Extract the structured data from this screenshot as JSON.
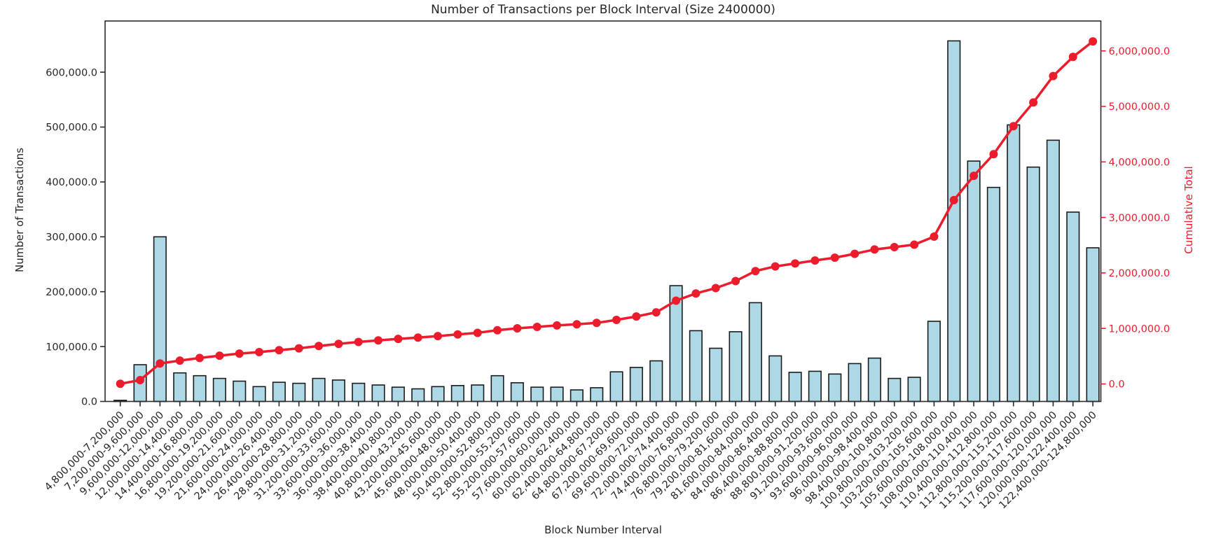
{
  "figure": {
    "title": "Number of Transactions per Block Interval (Size 2400000)",
    "xlabel": "Block Number Interval",
    "ylabel_left": "Number of Transactions",
    "ylabel_right": "Cumulative Total"
  },
  "colors": {
    "background": "#ffffff",
    "bar_fill": "#add8e6",
    "bar_edge": "#1c1c1c",
    "line": "#ed1c2d",
    "marker": "#ed1c2d",
    "spine": "#2b2b2b",
    "text": "#262626",
    "right_axis_text": "#ed1c2d"
  },
  "chart_data": {
    "type": "bar",
    "title": "Number of Transactions per Block Interval (Size 2400000)",
    "xlabel": "Block Number Interval",
    "ylabel": "Number of Transactions",
    "ylabel_right": "Cumulative Total",
    "interval_size": 2400000,
    "grid": false,
    "legend_position": "none",
    "categories": [
      "4,800,000-7,200,000",
      "7,200,000-9,600,000",
      "9,600,000-12,000,000",
      "12,000,000-14,400,000",
      "14,400,000-16,800,000",
      "16,800,000-19,200,000",
      "19,200,000-21,600,000",
      "21,600,000-24,000,000",
      "24,000,000-26,400,000",
      "26,400,000-28,800,000",
      "28,800,000-31,200,000",
      "31,200,000-33,600,000",
      "33,600,000-36,000,000",
      "36,000,000-38,400,000",
      "38,400,000-40,800,000",
      "40,800,000-43,200,000",
      "43,200,000-45,600,000",
      "45,600,000-48,000,000",
      "48,000,000-50,400,000",
      "50,400,000-52,800,000",
      "52,800,000-55,200,000",
      "55,200,000-57,600,000",
      "57,600,000-60,000,000",
      "60,000,000-62,400,000",
      "62,400,000-64,800,000",
      "64,800,000-67,200,000",
      "67,200,000-69,600,000",
      "69,600,000-72,000,000",
      "72,000,000-74,400,000",
      "74,400,000-76,800,000",
      "76,800,000-79,200,000",
      "79,200,000-81,600,000",
      "81,600,000-84,000,000",
      "84,000,000-86,400,000",
      "86,400,000-88,800,000",
      "88,800,000-91,200,000",
      "91,200,000-93,600,000",
      "93,600,000-96,000,000",
      "96,000,000-98,400,000",
      "98,400,000-100,800,000",
      "100,800,000-103,200,000",
      "103,200,000-105,600,000",
      "105,600,000-108,000,000",
      "108,000,000-110,400,000",
      "110,400,000-112,800,000",
      "112,800,000-115,200,000",
      "115,200,000-117,600,000",
      "117,600,000-120,000,000",
      "120,000,000-122,400,000",
      "122,400,000-124,800,000"
    ],
    "series": [
      {
        "name": "Number of Transactions",
        "type": "bar",
        "axis": "left",
        "values": [
          2000,
          67000,
          300000,
          52000,
          47000,
          42000,
          37000,
          27000,
          35000,
          33000,
          42000,
          39000,
          33000,
          30000,
          26000,
          23000,
          27000,
          29000,
          30000,
          47000,
          34000,
          26000,
          26000,
          21000,
          25000,
          54000,
          62000,
          74000,
          211000,
          129000,
          97000,
          127000,
          180000,
          83000,
          53000,
          55000,
          50000,
          69000,
          79000,
          42000,
          44000,
          146000,
          657000,
          438000,
          390000,
          504000,
          427000,
          476000,
          345000,
          280000
        ]
      },
      {
        "name": "Cumulative Total",
        "type": "line",
        "axis": "right",
        "values": [
          2000,
          69000,
          369000,
          421000,
          468000,
          510000,
          547000,
          574000,
          609000,
          642000,
          684000,
          723000,
          756000,
          786000,
          812000,
          835000,
          862000,
          891000,
          921000,
          968000,
          1002000,
          1028000,
          1054000,
          1075000,
          1100000,
          1154000,
          1216000,
          1290000,
          1501000,
          1630000,
          1727000,
          1854000,
          2034000,
          2117000,
          2170000,
          2225000,
          2275000,
          2344000,
          2423000,
          2465000,
          2509000,
          2655000,
          3312000,
          3750000,
          4140000,
          4644000,
          5071000,
          5547000,
          5892000,
          6172000
        ]
      }
    ],
    "left_axis": {
      "range": [
        0,
        693000
      ],
      "ticks": [
        {
          "value": 0,
          "label": "0.0"
        },
        {
          "value": 100000,
          "label": "100,000.0"
        },
        {
          "value": 200000,
          "label": "200,000.0"
        },
        {
          "value": 300000,
          "label": "300,000.0"
        },
        {
          "value": 400000,
          "label": "400,000.0"
        },
        {
          "value": 500000,
          "label": "500,000.0"
        },
        {
          "value": 600000,
          "label": "600,000.0"
        }
      ]
    },
    "right_axis": {
      "range": [
        -315000,
        6538000
      ],
      "ticks": [
        {
          "value": 0,
          "label": "0.0"
        },
        {
          "value": 1000000,
          "label": "1,000,000.0"
        },
        {
          "value": 2000000,
          "label": "2,000,000.0"
        },
        {
          "value": 3000000,
          "label": "3,000,000.0"
        },
        {
          "value": 4000000,
          "label": "4,000,000.0"
        },
        {
          "value": 5000000,
          "label": "5,000,000.0"
        },
        {
          "value": 6000000,
          "label": "6,000,000.0"
        }
      ]
    }
  }
}
